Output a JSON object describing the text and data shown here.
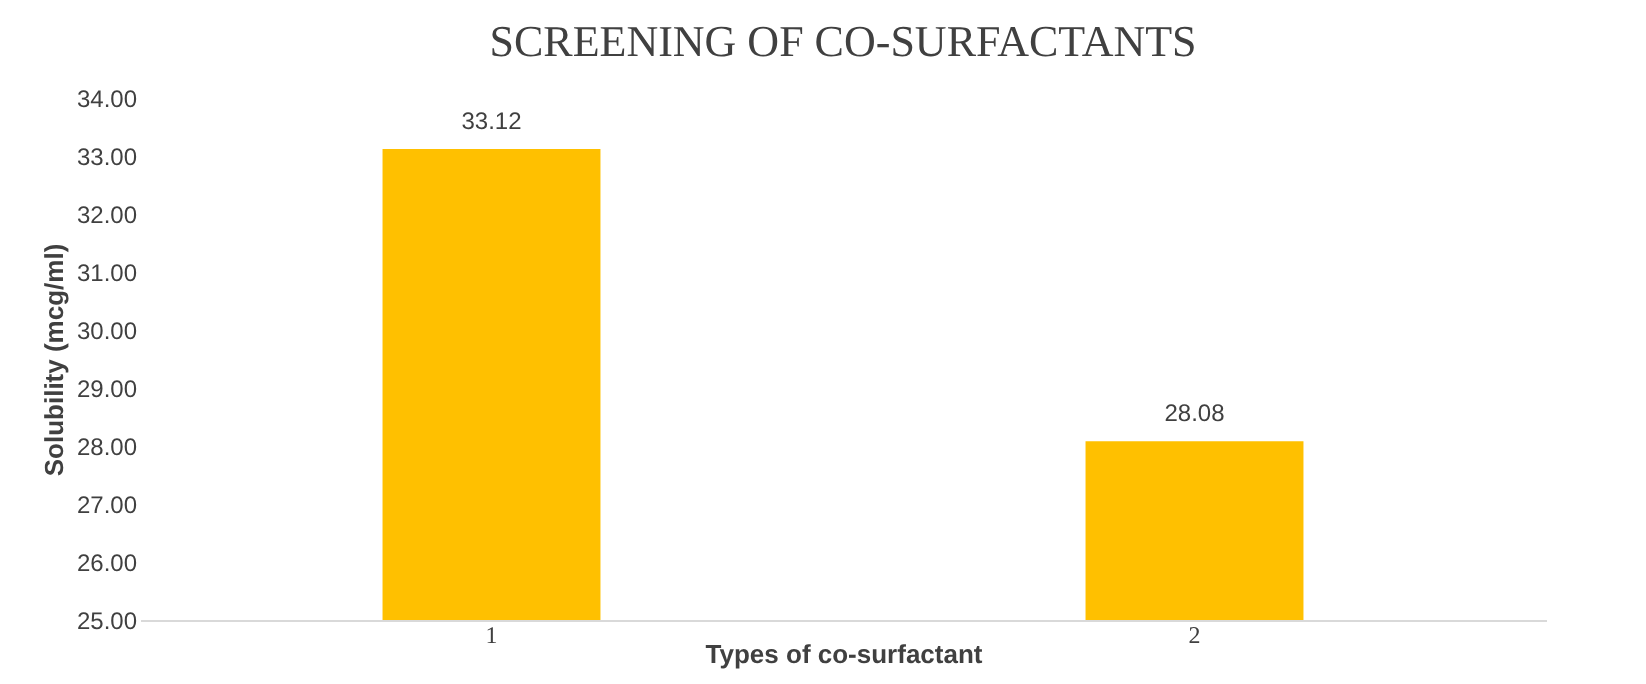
{
  "chart_data": {
    "type": "bar",
    "title": "SCREENING OF CO-SURFACTANTS",
    "xlabel": "Types of co-surfactant",
    "ylabel": "Solubility (mcg/ml)",
    "categories": [
      "1",
      "2"
    ],
    "values": [
      33.12,
      28.08
    ],
    "color": "#ffc000",
    "ylim": [
      25,
      34
    ],
    "yticks": [
      {
        "value": 25,
        "label": "25.00"
      },
      {
        "value": 26,
        "label": "26.00"
      },
      {
        "value": 27,
        "label": "27.00"
      },
      {
        "value": 28,
        "label": "28.00"
      },
      {
        "value": 29,
        "label": "29.00"
      },
      {
        "value": 30,
        "label": "30.00"
      },
      {
        "value": 31,
        "label": "31.00"
      },
      {
        "value": 32,
        "label": "32.00"
      },
      {
        "value": 33,
        "label": "33.00"
      },
      {
        "value": 34,
        "label": "34.00"
      }
    ],
    "grid": false,
    "data_labels": true
  }
}
